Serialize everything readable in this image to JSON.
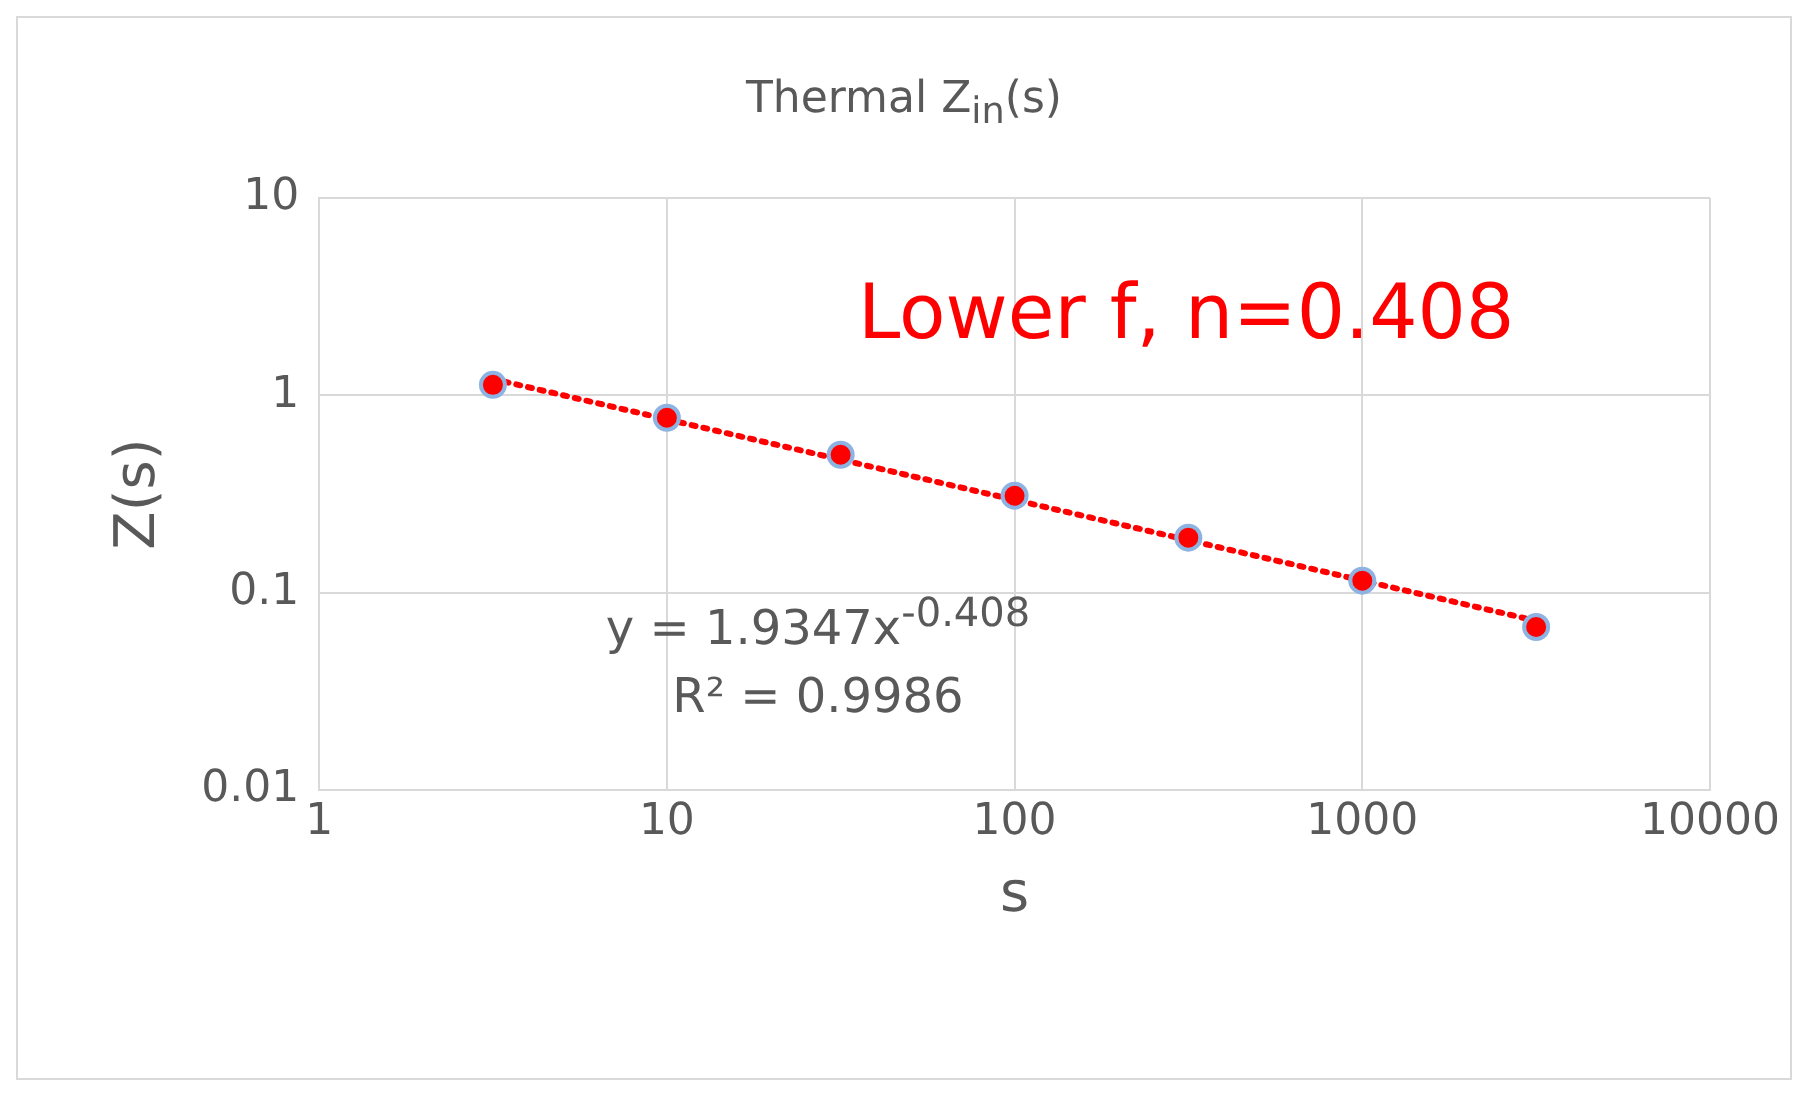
{
  "chart_data": {
    "type": "scatter",
    "title": "Thermal Z$_{in}$(s)",
    "xlabel": "s",
    "ylabel": "Z(s)",
    "series": [
      {
        "color": "#ff0000",
        "marker": "circle",
        "x": [
          3.16,
          10,
          31.6,
          100,
          316,
          1000,
          3162
        ],
        "values": [
          1.13,
          0.77,
          0.5,
          0.31,
          0.19,
          0.115,
          0.067
        ]
      },
      {
        "type": "line",
        "color": "#ff0000",
        "marker": "none",
        "line_style": "dotted",
        "x": [
          3.16,
          3162
        ],
        "values": [
          1.21,
          0.072
        ]
      }
    ],
    "xlim": [
      1,
      10000
    ],
    "ylim": [
      0.01,
      10
    ],
    "xticks": [
      1,
      10,
      100,
      1000,
      10000
    ],
    "yticks": [
      0.01,
      0.1,
      1,
      10
    ],
    "log": "xy",
    "grid": true,
    "legend": false,
    "annotations": [
      "Lower f, n=0.408",
      "y = 1.9347x$^{-0.408}$",
      "R² = 0.9986"
    ]
  }
}
